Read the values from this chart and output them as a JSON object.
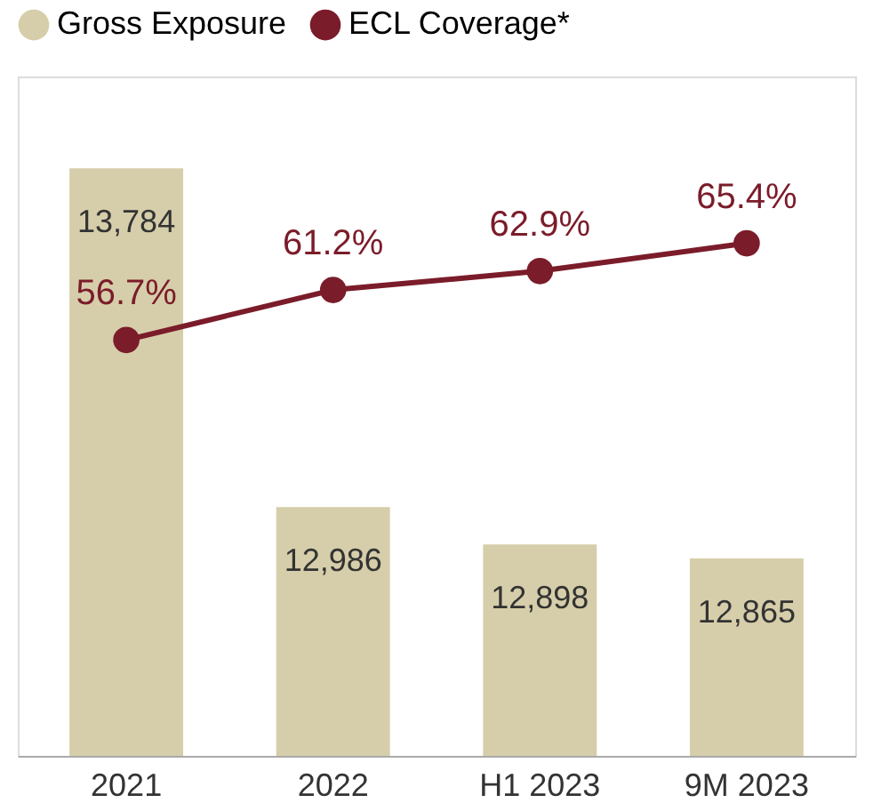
{
  "chart_data": {
    "type": "bar",
    "categories": [
      "2021",
      "2022",
      "H1 2023",
      "9M 2023"
    ],
    "ylim": [
      12400,
      14000
    ],
    "y2lim": [
      19.3,
      80.4
    ],
    "legend": "top",
    "marker": "circle",
    "line_style": "solid",
    "series": [
      {
        "name": "Gross Exposure",
        "color": "#d6ceaa",
        "values": [
          13784,
          12986,
          12898,
          12865
        ],
        "value_labels": [
          "13,784",
          "12,986",
          "12,898",
          "12,865"
        ]
      },
      {
        "name": "ECL Coverage*",
        "type": "line",
        "axis": "y2",
        "color": "#7b1c2a",
        "values": [
          56.7,
          61.2,
          62.9,
          65.4
        ],
        "value_labels": [
          "56.7%",
          "61.2%",
          "62.9%",
          "65.4%"
        ]
      }
    ]
  }
}
